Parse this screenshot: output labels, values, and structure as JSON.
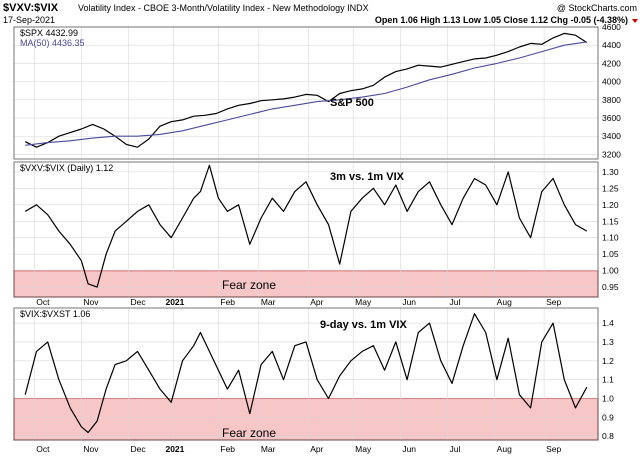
{
  "header": {
    "symbol": "$VXV:$VIX",
    "description": "Volatility Index - CBOE 3-Month/Volatility Index - New Methodology  INDX",
    "brand": "@ StockCharts.com",
    "date": "17-Sep-2021",
    "ohlc": "Open 1.06  High 1.13  Low 1.05  Close 1.12  Chg -0.05 (-4.38%)",
    "ohlc_color": "#cc0000"
  },
  "colors": {
    "price_line": "#000000",
    "ma_line": "#4a4a9c",
    "fear_fill": "#f7c6c6",
    "fear_stroke": "#cc0000",
    "grid": "#d8d8d8"
  },
  "chart_data": [
    {
      "type": "line",
      "panel": "spx",
      "legend": [
        "$SPX 4432.99",
        "MA(50) 4436.35"
      ],
      "annotation": "S&P 500",
      "ylim": [
        3150,
        4600
      ],
      "yticks": [
        3200,
        3400,
        3600,
        3800,
        4000,
        4200,
        4400,
        4600
      ],
      "series": [
        {
          "name": "$SPX",
          "x": [
            0,
            5,
            10,
            15,
            20,
            25,
            30,
            35,
            40,
            45,
            50,
            55,
            60,
            65,
            70,
            75,
            80,
            85,
            90,
            95,
            100,
            105,
            110,
            115,
            120,
            125,
            130,
            135,
            140,
            145,
            150,
            155,
            160,
            165,
            170,
            175,
            180,
            185,
            190,
            195,
            200,
            205,
            210,
            215,
            220,
            225,
            230,
            235,
            240,
            245,
            250
          ],
          "values": [
            3340,
            3280,
            3330,
            3400,
            3440,
            3480,
            3530,
            3480,
            3400,
            3310,
            3280,
            3370,
            3510,
            3560,
            3580,
            3620,
            3630,
            3650,
            3700,
            3740,
            3760,
            3790,
            3800,
            3810,
            3830,
            3860,
            3850,
            3780,
            3870,
            3900,
            3920,
            3960,
            4050,
            4110,
            4140,
            4180,
            4170,
            4160,
            4190,
            4220,
            4250,
            4260,
            4290,
            4330,
            4380,
            4420,
            4410,
            4480,
            4530,
            4510,
            4430
          ]
        },
        {
          "name": "MA(50)",
          "x": [
            0,
            10,
            20,
            30,
            40,
            50,
            60,
            70,
            80,
            90,
            100,
            110,
            120,
            130,
            140,
            150,
            160,
            170,
            180,
            190,
            200,
            210,
            220,
            230,
            240,
            250
          ],
          "values": [
            3300,
            3330,
            3350,
            3380,
            3400,
            3400,
            3420,
            3460,
            3520,
            3580,
            3640,
            3700,
            3740,
            3780,
            3800,
            3830,
            3870,
            3940,
            4020,
            4080,
            4150,
            4200,
            4260,
            4330,
            4400,
            4436
          ]
        }
      ]
    },
    {
      "type": "line",
      "panel": "vxv",
      "legend": [
        "$VXV:$VIX (Daily) 1.12"
      ],
      "annotation": "3m vs. 1m VIX",
      "zone_label": "Fear zone",
      "zone": [
        0.9,
        1.0
      ],
      "ylim": [
        0.92,
        1.33
      ],
      "yticks": [
        0.95,
        1.0,
        1.05,
        1.1,
        1.15,
        1.2,
        1.25,
        1.3
      ],
      "series": [
        {
          "name": "$VXV:$VIX",
          "x": [
            0,
            5,
            10,
            15,
            20,
            25,
            28,
            32,
            36,
            40,
            45,
            50,
            55,
            60,
            65,
            70,
            75,
            78,
            82,
            86,
            90,
            95,
            100,
            105,
            110,
            115,
            120,
            125,
            130,
            135,
            140,
            145,
            150,
            155,
            160,
            165,
            170,
            175,
            180,
            185,
            190,
            195,
            200,
            205,
            210,
            215,
            220,
            225,
            230,
            235,
            240,
            245,
            250
          ],
          "values": [
            1.18,
            1.2,
            1.17,
            1.12,
            1.08,
            1.03,
            0.96,
            0.95,
            1.05,
            1.12,
            1.15,
            1.18,
            1.2,
            1.14,
            1.1,
            1.16,
            1.22,
            1.24,
            1.32,
            1.22,
            1.18,
            1.2,
            1.08,
            1.16,
            1.22,
            1.18,
            1.24,
            1.27,
            1.2,
            1.14,
            1.02,
            1.18,
            1.22,
            1.25,
            1.2,
            1.26,
            1.18,
            1.24,
            1.27,
            1.2,
            1.14,
            1.22,
            1.28,
            1.26,
            1.2,
            1.3,
            1.16,
            1.1,
            1.24,
            1.28,
            1.2,
            1.14,
            1.12
          ]
        }
      ]
    },
    {
      "type": "line",
      "panel": "vix",
      "legend": [
        "$VIX:$VXST 1.06"
      ],
      "annotation": "9-day vs. 1m VIX",
      "zone_label": "Fear zone",
      "zone": [
        0.78,
        1.0
      ],
      "ylim": [
        0.78,
        1.48
      ],
      "yticks": [
        0.8,
        0.9,
        1.0,
        1.1,
        1.2,
        1.3,
        1.4
      ],
      "series": [
        {
          "name": "$VIX:$VXST",
          "x": [
            0,
            5,
            10,
            15,
            20,
            25,
            28,
            32,
            36,
            40,
            45,
            50,
            55,
            60,
            65,
            70,
            75,
            78,
            82,
            86,
            90,
            95,
            100,
            105,
            110,
            115,
            120,
            125,
            130,
            135,
            140,
            145,
            150,
            155,
            160,
            165,
            170,
            175,
            180,
            185,
            190,
            195,
            200,
            205,
            210,
            215,
            220,
            225,
            230,
            235,
            240,
            245,
            250
          ],
          "values": [
            1.02,
            1.25,
            1.3,
            1.1,
            0.95,
            0.85,
            0.82,
            0.88,
            1.05,
            1.18,
            1.2,
            1.25,
            1.15,
            1.05,
            0.98,
            1.2,
            1.28,
            1.35,
            1.25,
            1.15,
            1.05,
            1.15,
            0.92,
            1.18,
            1.25,
            1.1,
            1.28,
            1.3,
            1.1,
            1.0,
            1.12,
            1.2,
            1.25,
            1.28,
            1.15,
            1.3,
            1.1,
            1.35,
            1.4,
            1.2,
            1.08,
            1.28,
            1.45,
            1.35,
            1.1,
            1.32,
            1.02,
            0.95,
            1.3,
            1.4,
            1.1,
            0.95,
            1.06
          ]
        }
      ]
    }
  ],
  "xaxis": {
    "ticks": [
      {
        "label": "Oct",
        "x": 4
      },
      {
        "label": "Nov",
        "x": 25
      },
      {
        "label": "Dec",
        "x": 46
      },
      {
        "label": "2021",
        "x": 66
      },
      {
        "label": "Feb",
        "x": 86
      },
      {
        "label": "Mar",
        "x": 104
      },
      {
        "label": "Apr",
        "x": 126
      },
      {
        "label": "May",
        "x": 146
      },
      {
        "label": "Jun",
        "x": 167
      },
      {
        "label": "Jul",
        "x": 188
      },
      {
        "label": "Aug",
        "x": 209
      },
      {
        "label": "Sep",
        "x": 231
      }
    ],
    "xlim": [
      -5,
      255
    ]
  }
}
